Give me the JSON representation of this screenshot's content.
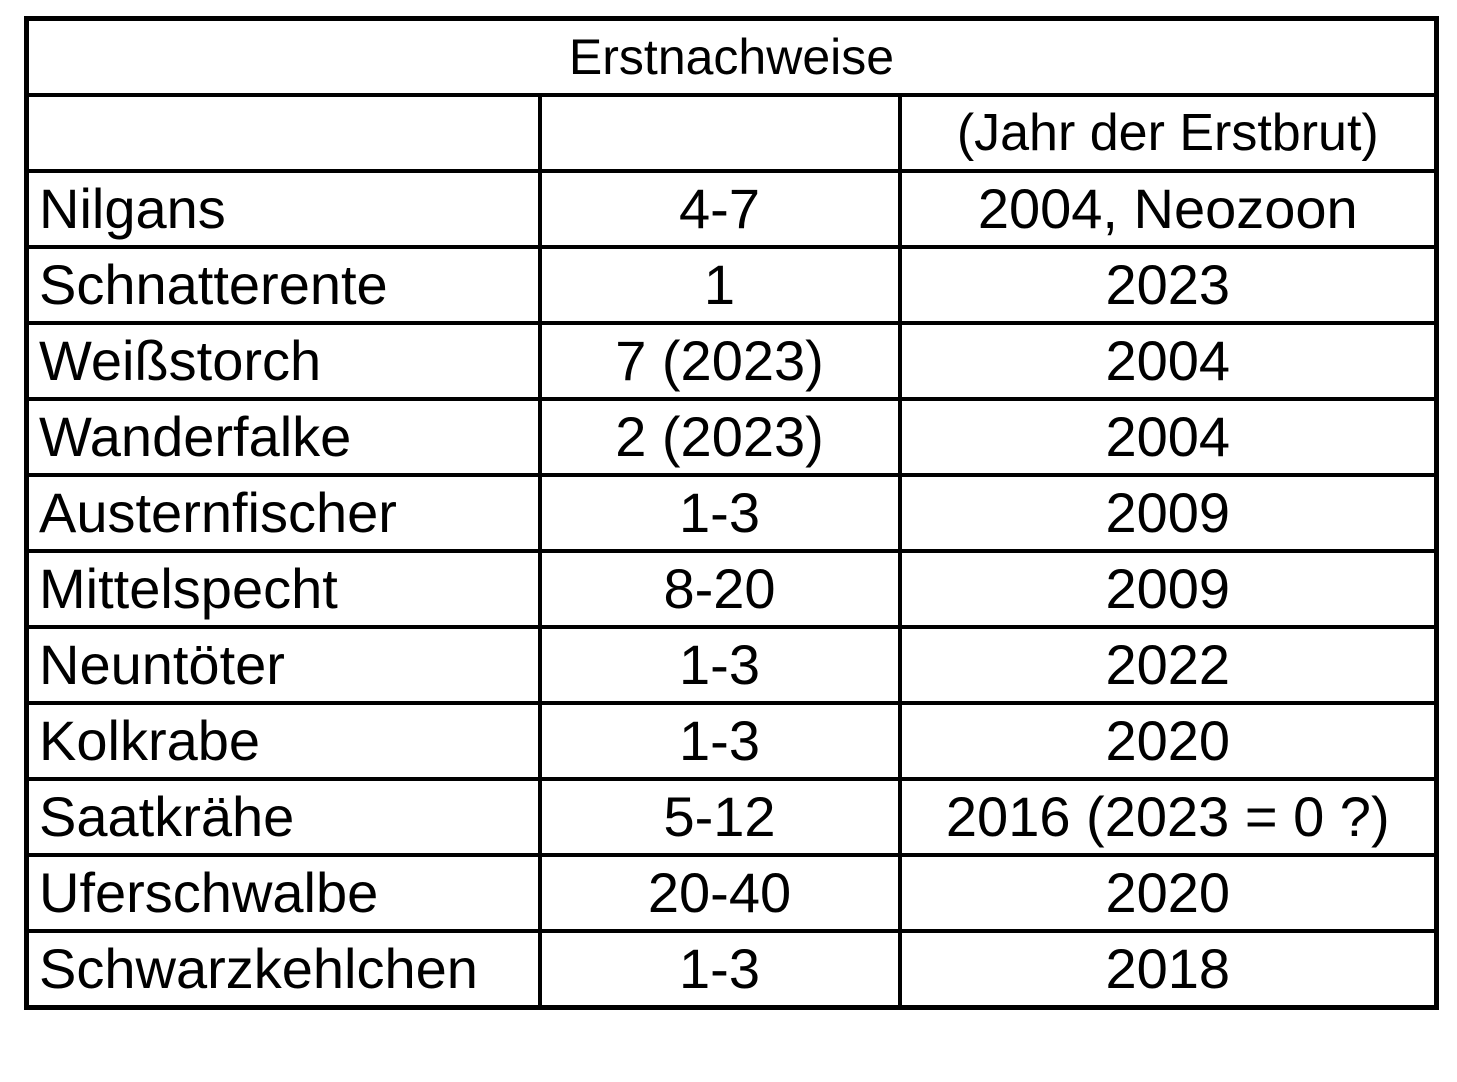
{
  "table": {
    "title": "Erstnachweise",
    "subheader": [
      "",
      "",
      "(Jahr der Erstbrut)"
    ],
    "rows": [
      {
        "species": "Nilgans",
        "count": "4-7",
        "first": "2004, Neozoon"
      },
      {
        "species": "Schnatterente",
        "count": "1",
        "first": "2023"
      },
      {
        "species": "Weißstorch",
        "count": "7 (2023)",
        "first": "2004"
      },
      {
        "species": "Wanderfalke",
        "count": "2 (2023)",
        "first": "2004"
      },
      {
        "species": "Austernfischer",
        "count": "1-3",
        "first": "2009"
      },
      {
        "species": "Mittelspecht",
        "count": "8-20",
        "first": "2009"
      },
      {
        "species": "Neuntöter",
        "count": "1-3",
        "first": "2022"
      },
      {
        "species": "Kolkrabe",
        "count": "1-3",
        "first": "2020"
      },
      {
        "species": "Saatkrähe",
        "count": "5-12",
        "first": "2016 (2023 = 0 ?)"
      },
      {
        "species": "Uferschwalbe",
        "count": "20-40",
        "first": "2020"
      },
      {
        "species": "Schwarzkehlchen",
        "count": "1-3",
        "first": "2018"
      }
    ]
  }
}
